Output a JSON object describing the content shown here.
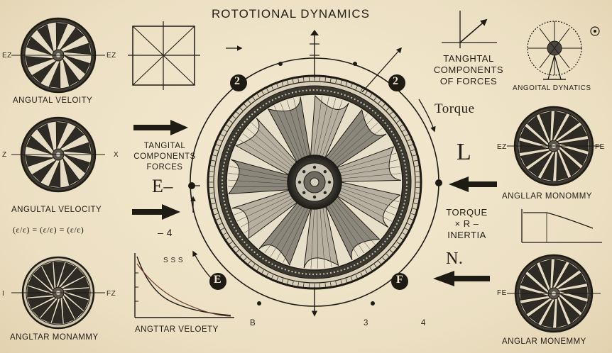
{
  "title": "ROTOTIONAL DYNAMICS",
  "labels": {
    "angular_velocity_top": "ANGUTAL VELOITY",
    "angular_velocity_mid": "ANGULTAL VELOCITY",
    "anglar_monammy_bl": "ANGLTAR MONAMMY",
    "angtiar_veloety": "ANGTTAR VELOETY",
    "tangital_left_1": "TANGITAL",
    "tangital_left_2": "COMPONENTS",
    "tangital_left_3": "FORCES",
    "tanghtal_right_1": "TANGHTAL",
    "tanghtal_right_2": "COMPONENTS",
    "tanghtal_right_3": "OF FORCES",
    "torque_top": "Torque",
    "angoital_dyntaics": "ANGOITAL DYNATICS",
    "anglar_monommy": "ANGLLAR MONOMMY",
    "torque_inertia_1": "TORQUE",
    "torque_inertia_2": "× R –",
    "torque_inertia_3": "INERTIA",
    "anglar_monemmy_br": "ANGLAR MONEMMY",
    "L_symbol": "L",
    "N_symbol": "N.",
    "E_symbol": "E–",
    "minus4": "– 4",
    "equation": "(ε/ε) = (ε/ε) = (ε/ε)",
    "node_tl": "2",
    "node_tr": "2",
    "node_bl": "E",
    "node_br": "F",
    "s3s": "S S S",
    "b_bottom": "B",
    "three_bottom": "3",
    "four_bottom": "4"
  },
  "wheel_edge_labels": {
    "w1_left": "EZ",
    "w1_right": "EZ",
    "w2_left": "Z",
    "w2_right": "X",
    "w3_left": "I",
    "w3_right": "FZ",
    "w5_left": "EZ",
    "w5_right": "FE",
    "w6_left": "FE"
  }
}
